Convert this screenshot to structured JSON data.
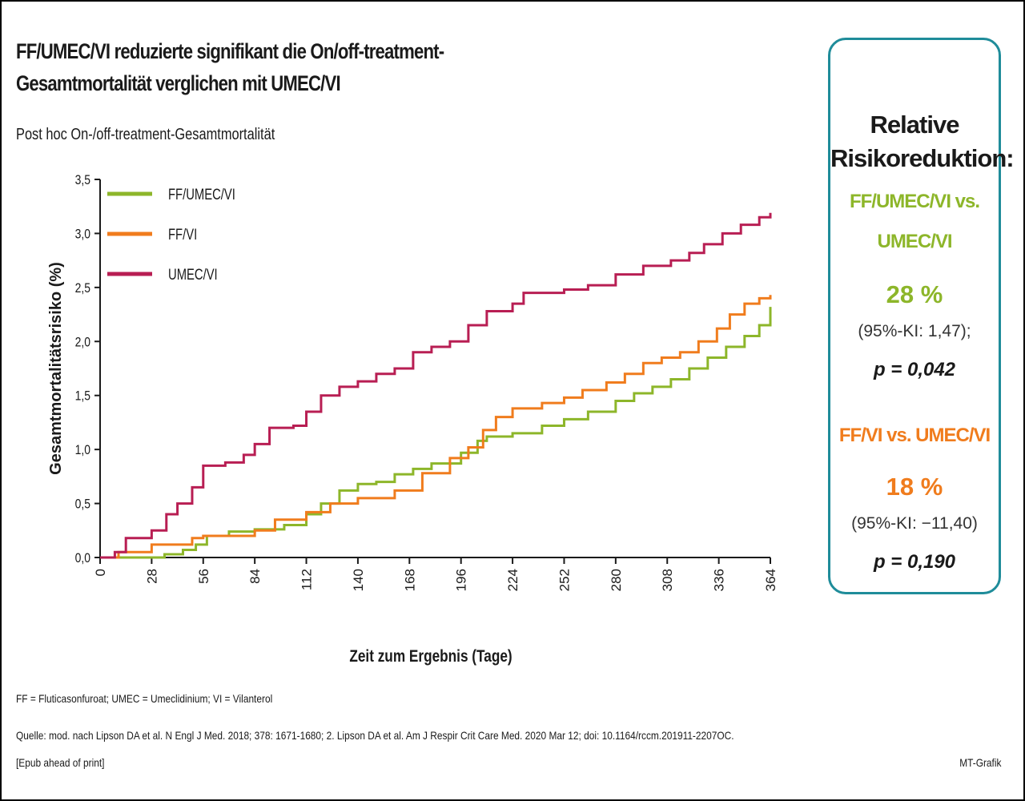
{
  "header": {
    "title_line1": "FF/UMEC/VI reduzierte signifikant die On/off-treatment-",
    "title_line2": "Gesamtmortalität verglichen mit UMEC/VI",
    "subtitle": "Post hoc On-/off-treatment-Gesamtmortalität"
  },
  "panel": {
    "heading_line1": "Relative",
    "heading_line2": "Risikoreduktion:",
    "comparison1_line1": "FF/UMEC/VI vs.",
    "comparison1_line2": "UMEC/VI",
    "comparison1_pct": "28 %",
    "comparison1_ci": "(95%-KI: 1,47);",
    "comparison1_p": "p = 0,042",
    "comparison2_label": "FF/VI vs. UMEC/VI",
    "comparison2_pct": "18 %",
    "comparison2_ci": "(95%-KI: −11,40)",
    "comparison2_p": "p = 0,190",
    "color1": "#8db62a",
    "color2": "#f07c1d",
    "border_color": "#1f8c9a"
  },
  "footer": {
    "abbreviations": "FF = Fluticasonfuroat; UMEC = Umeclidinium; VI = Vilanterol",
    "source_line1": "Quelle: mod. nach   Lipson DA et al. N Engl J Med. 2018; 378: 1671-1680; 2. Lipson DA et al. Am J Respir Crit Care Med. 2020 Mar 12; doi: 10.1164/rccm.201911-2207OC.",
    "source_line2": "[Epub ahead of print]",
    "credit": "MT-Grafik"
  },
  "chart_data": {
    "type": "line",
    "xlabel": "Zeit zum Ergebnis (Tage)",
    "ylabel": "Gesamtmortalitätsrisiko (%)",
    "xlim": [
      0,
      364
    ],
    "ylim": [
      0,
      3.5
    ],
    "x_ticks": [
      0,
      28,
      56,
      84,
      112,
      140,
      168,
      196,
      224,
      252,
      280,
      308,
      336,
      364
    ],
    "y_ticks": [
      "0,0",
      "0,5",
      "1,0",
      "1,5",
      "2,0",
      "2,5",
      "3,0",
      "3,5"
    ],
    "legend_position": "top-left",
    "series": [
      {
        "name": "FF/UMEC/VI",
        "color": "#8db62a",
        "points": [
          [
            0,
            0
          ],
          [
            28,
            0
          ],
          [
            35,
            0.03
          ],
          [
            45,
            0.07
          ],
          [
            52,
            0.12
          ],
          [
            58,
            0.2
          ],
          [
            70,
            0.24
          ],
          [
            84,
            0.26
          ],
          [
            100,
            0.3
          ],
          [
            112,
            0.4
          ],
          [
            120,
            0.5
          ],
          [
            130,
            0.62
          ],
          [
            140,
            0.68
          ],
          [
            150,
            0.7
          ],
          [
            160,
            0.77
          ],
          [
            170,
            0.82
          ],
          [
            180,
            0.87
          ],
          [
            196,
            0.97
          ],
          [
            205,
            1.08
          ],
          [
            210,
            1.12
          ],
          [
            224,
            1.15
          ],
          [
            240,
            1.22
          ],
          [
            252,
            1.28
          ],
          [
            265,
            1.35
          ],
          [
            280,
            1.45
          ],
          [
            290,
            1.52
          ],
          [
            300,
            1.58
          ],
          [
            310,
            1.65
          ],
          [
            320,
            1.75
          ],
          [
            330,
            1.85
          ],
          [
            340,
            1.95
          ],
          [
            350,
            2.05
          ],
          [
            358,
            2.15
          ],
          [
            364,
            2.32
          ]
        ]
      },
      {
        "name": "FF/VI",
        "color": "#f07c1d",
        "points": [
          [
            0,
            0
          ],
          [
            10,
            0.05
          ],
          [
            28,
            0.12
          ],
          [
            50,
            0.18
          ],
          [
            56,
            0.2
          ],
          [
            70,
            0.2
          ],
          [
            84,
            0.25
          ],
          [
            95,
            0.35
          ],
          [
            112,
            0.42
          ],
          [
            125,
            0.5
          ],
          [
            140,
            0.55
          ],
          [
            160,
            0.62
          ],
          [
            175,
            0.78
          ],
          [
            190,
            0.92
          ],
          [
            200,
            1.02
          ],
          [
            208,
            1.18
          ],
          [
            215,
            1.3
          ],
          [
            224,
            1.38
          ],
          [
            240,
            1.43
          ],
          [
            252,
            1.48
          ],
          [
            262,
            1.55
          ],
          [
            275,
            1.62
          ],
          [
            285,
            1.7
          ],
          [
            295,
            1.8
          ],
          [
            305,
            1.85
          ],
          [
            315,
            1.9
          ],
          [
            325,
            2.0
          ],
          [
            335,
            2.12
          ],
          [
            342,
            2.25
          ],
          [
            350,
            2.35
          ],
          [
            358,
            2.4
          ],
          [
            364,
            2.43
          ]
        ]
      },
      {
        "name": "UMEC/VI",
        "color": "#b81e53",
        "points": [
          [
            0,
            0
          ],
          [
            8,
            0.05
          ],
          [
            14,
            0.18
          ],
          [
            28,
            0.25
          ],
          [
            36,
            0.4
          ],
          [
            42,
            0.5
          ],
          [
            50,
            0.65
          ],
          [
            56,
            0.85
          ],
          [
            68,
            0.88
          ],
          [
            78,
            0.95
          ],
          [
            84,
            1.05
          ],
          [
            92,
            1.2
          ],
          [
            105,
            1.22
          ],
          [
            112,
            1.35
          ],
          [
            120,
            1.5
          ],
          [
            130,
            1.58
          ],
          [
            140,
            1.63
          ],
          [
            150,
            1.7
          ],
          [
            160,
            1.75
          ],
          [
            170,
            1.9
          ],
          [
            180,
            1.95
          ],
          [
            190,
            2.0
          ],
          [
            200,
            2.15
          ],
          [
            210,
            2.28
          ],
          [
            224,
            2.35
          ],
          [
            230,
            2.45
          ],
          [
            252,
            2.48
          ],
          [
            265,
            2.52
          ],
          [
            280,
            2.62
          ],
          [
            295,
            2.7
          ],
          [
            310,
            2.75
          ],
          [
            320,
            2.82
          ],
          [
            328,
            2.9
          ],
          [
            338,
            3.0
          ],
          [
            348,
            3.08
          ],
          [
            358,
            3.15
          ],
          [
            364,
            3.19
          ]
        ]
      }
    ]
  }
}
